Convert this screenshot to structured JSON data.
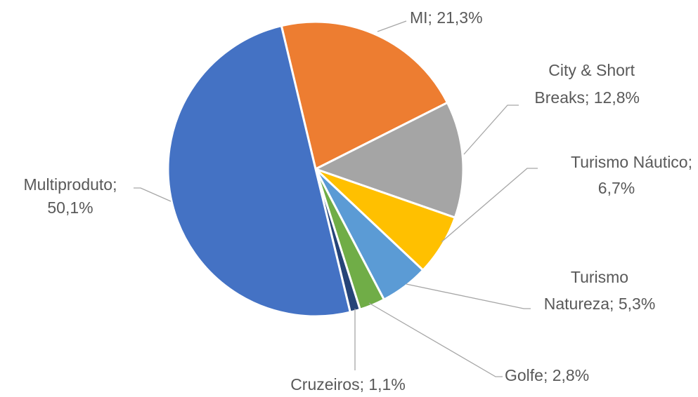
{
  "chart_data": {
    "type": "pie",
    "values": [
      21.3,
      12.8,
      6.7,
      5.3,
      2.8,
      1.1,
      50.1
    ],
    "value_labels": [
      [
        "MI; 21,3%"
      ],
      [
        "City & Short",
        "Breaks; 12,8%"
      ],
      [
        "Turismo Náutico;",
        "6,7%"
      ],
      [
        "Turismo",
        "Natureza; 5,3%"
      ],
      [
        "Golfe; 2,8%"
      ],
      [
        "Cruzeiros; 1,1%"
      ],
      [
        "Multiproduto;",
        "50,1%"
      ]
    ],
    "colors": [
      "#ed7d31",
      "#a5a5a5",
      "#ffc000",
      "#5b9bd5",
      "#70ad47",
      "#264478",
      "#4472c4"
    ]
  }
}
